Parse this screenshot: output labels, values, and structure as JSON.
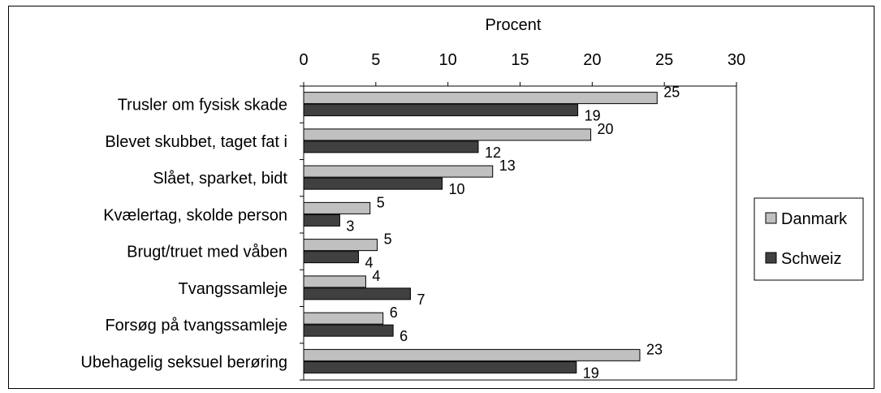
{
  "chart_data": {
    "type": "bar",
    "orientation": "horizontal",
    "title": "Procent",
    "xlabel": "Procent",
    "ylabel": "",
    "xlim": [
      0,
      30
    ],
    "ticks": [
      0,
      5,
      10,
      15,
      20,
      25,
      30
    ],
    "tick_labels": [
      "0",
      "5",
      "10",
      "15",
      "20",
      "25",
      "30"
    ],
    "categories": [
      "Trusler om fysisk skade",
      "Blevet skubbet, taget fat i",
      "Slået, sparket, bidt",
      "Kvælertag, skolde person",
      "Brugt/truet med våben",
      "Tvangssamleje",
      "Forsøg på tvangssamleje",
      "Ubehagelig seksuel berøring"
    ],
    "series": [
      {
        "name": "Danmark",
        "color": "#c0c0c0",
        "values": [
          24.5,
          19.9,
          13.1,
          4.6,
          5.1,
          4.3,
          5.5,
          23.3
        ],
        "labels": [
          "25",
          "20",
          "13",
          "5",
          "5",
          "4",
          "6",
          "23"
        ]
      },
      {
        "name": "Schweiz",
        "color": "#404040",
        "values": [
          19.0,
          12.1,
          9.6,
          2.5,
          3.8,
          7.4,
          6.2,
          18.9
        ],
        "labels": [
          "19",
          "12",
          "10",
          "3",
          "4",
          "7",
          "6",
          "19"
        ]
      }
    ],
    "grid": false,
    "legend": "right"
  }
}
